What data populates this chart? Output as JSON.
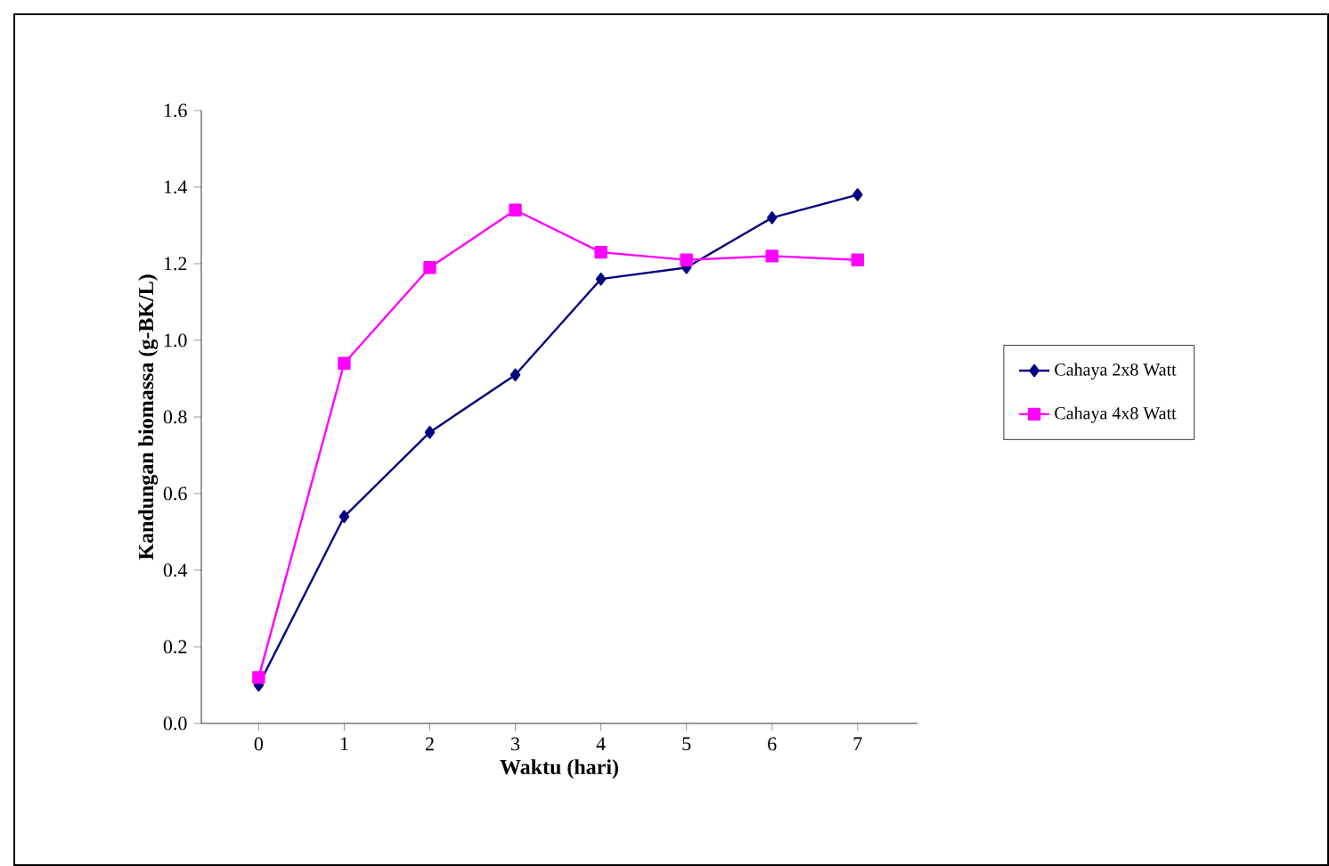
{
  "chart_data": {
    "type": "line",
    "xlabel": "Waktu (hari)",
    "ylabel": "Kandungan biomassa (g-BK/L)",
    "categories": [
      "0",
      "1",
      "2",
      "3",
      "4",
      "5",
      "6",
      "7"
    ],
    "series": [
      {
        "name": "Cahaya 2x8 Watt",
        "color": "#000080",
        "marker": "diamond",
        "values": [
          0.1,
          0.54,
          0.76,
          0.91,
          1.16,
          1.19,
          1.32,
          1.38
        ]
      },
      {
        "name": "Cahaya 4x8 Watt",
        "color": "#ff00ff",
        "marker": "square",
        "values": [
          0.12,
          0.94,
          1.19,
          1.34,
          1.23,
          1.21,
          1.22,
          1.21
        ]
      }
    ],
    "ylim": [
      0,
      1.6
    ],
    "yticks": [
      {
        "value": 0,
        "label": "0.0"
      },
      {
        "value": 0.2,
        "label": "0.2"
      },
      {
        "value": 0.4,
        "label": "0.4"
      },
      {
        "value": 0.6,
        "label": "0.6"
      },
      {
        "value": 0.8,
        "label": "0.8"
      },
      {
        "value": 1.0,
        "label": "1.0"
      },
      {
        "value": 1.2,
        "label": "1.2"
      },
      {
        "value": 1.4,
        "label": "1.4"
      },
      {
        "value": 1.6,
        "label": "1.6"
      }
    ],
    "grid": false,
    "legend": "right",
    "line_style": "solid"
  }
}
